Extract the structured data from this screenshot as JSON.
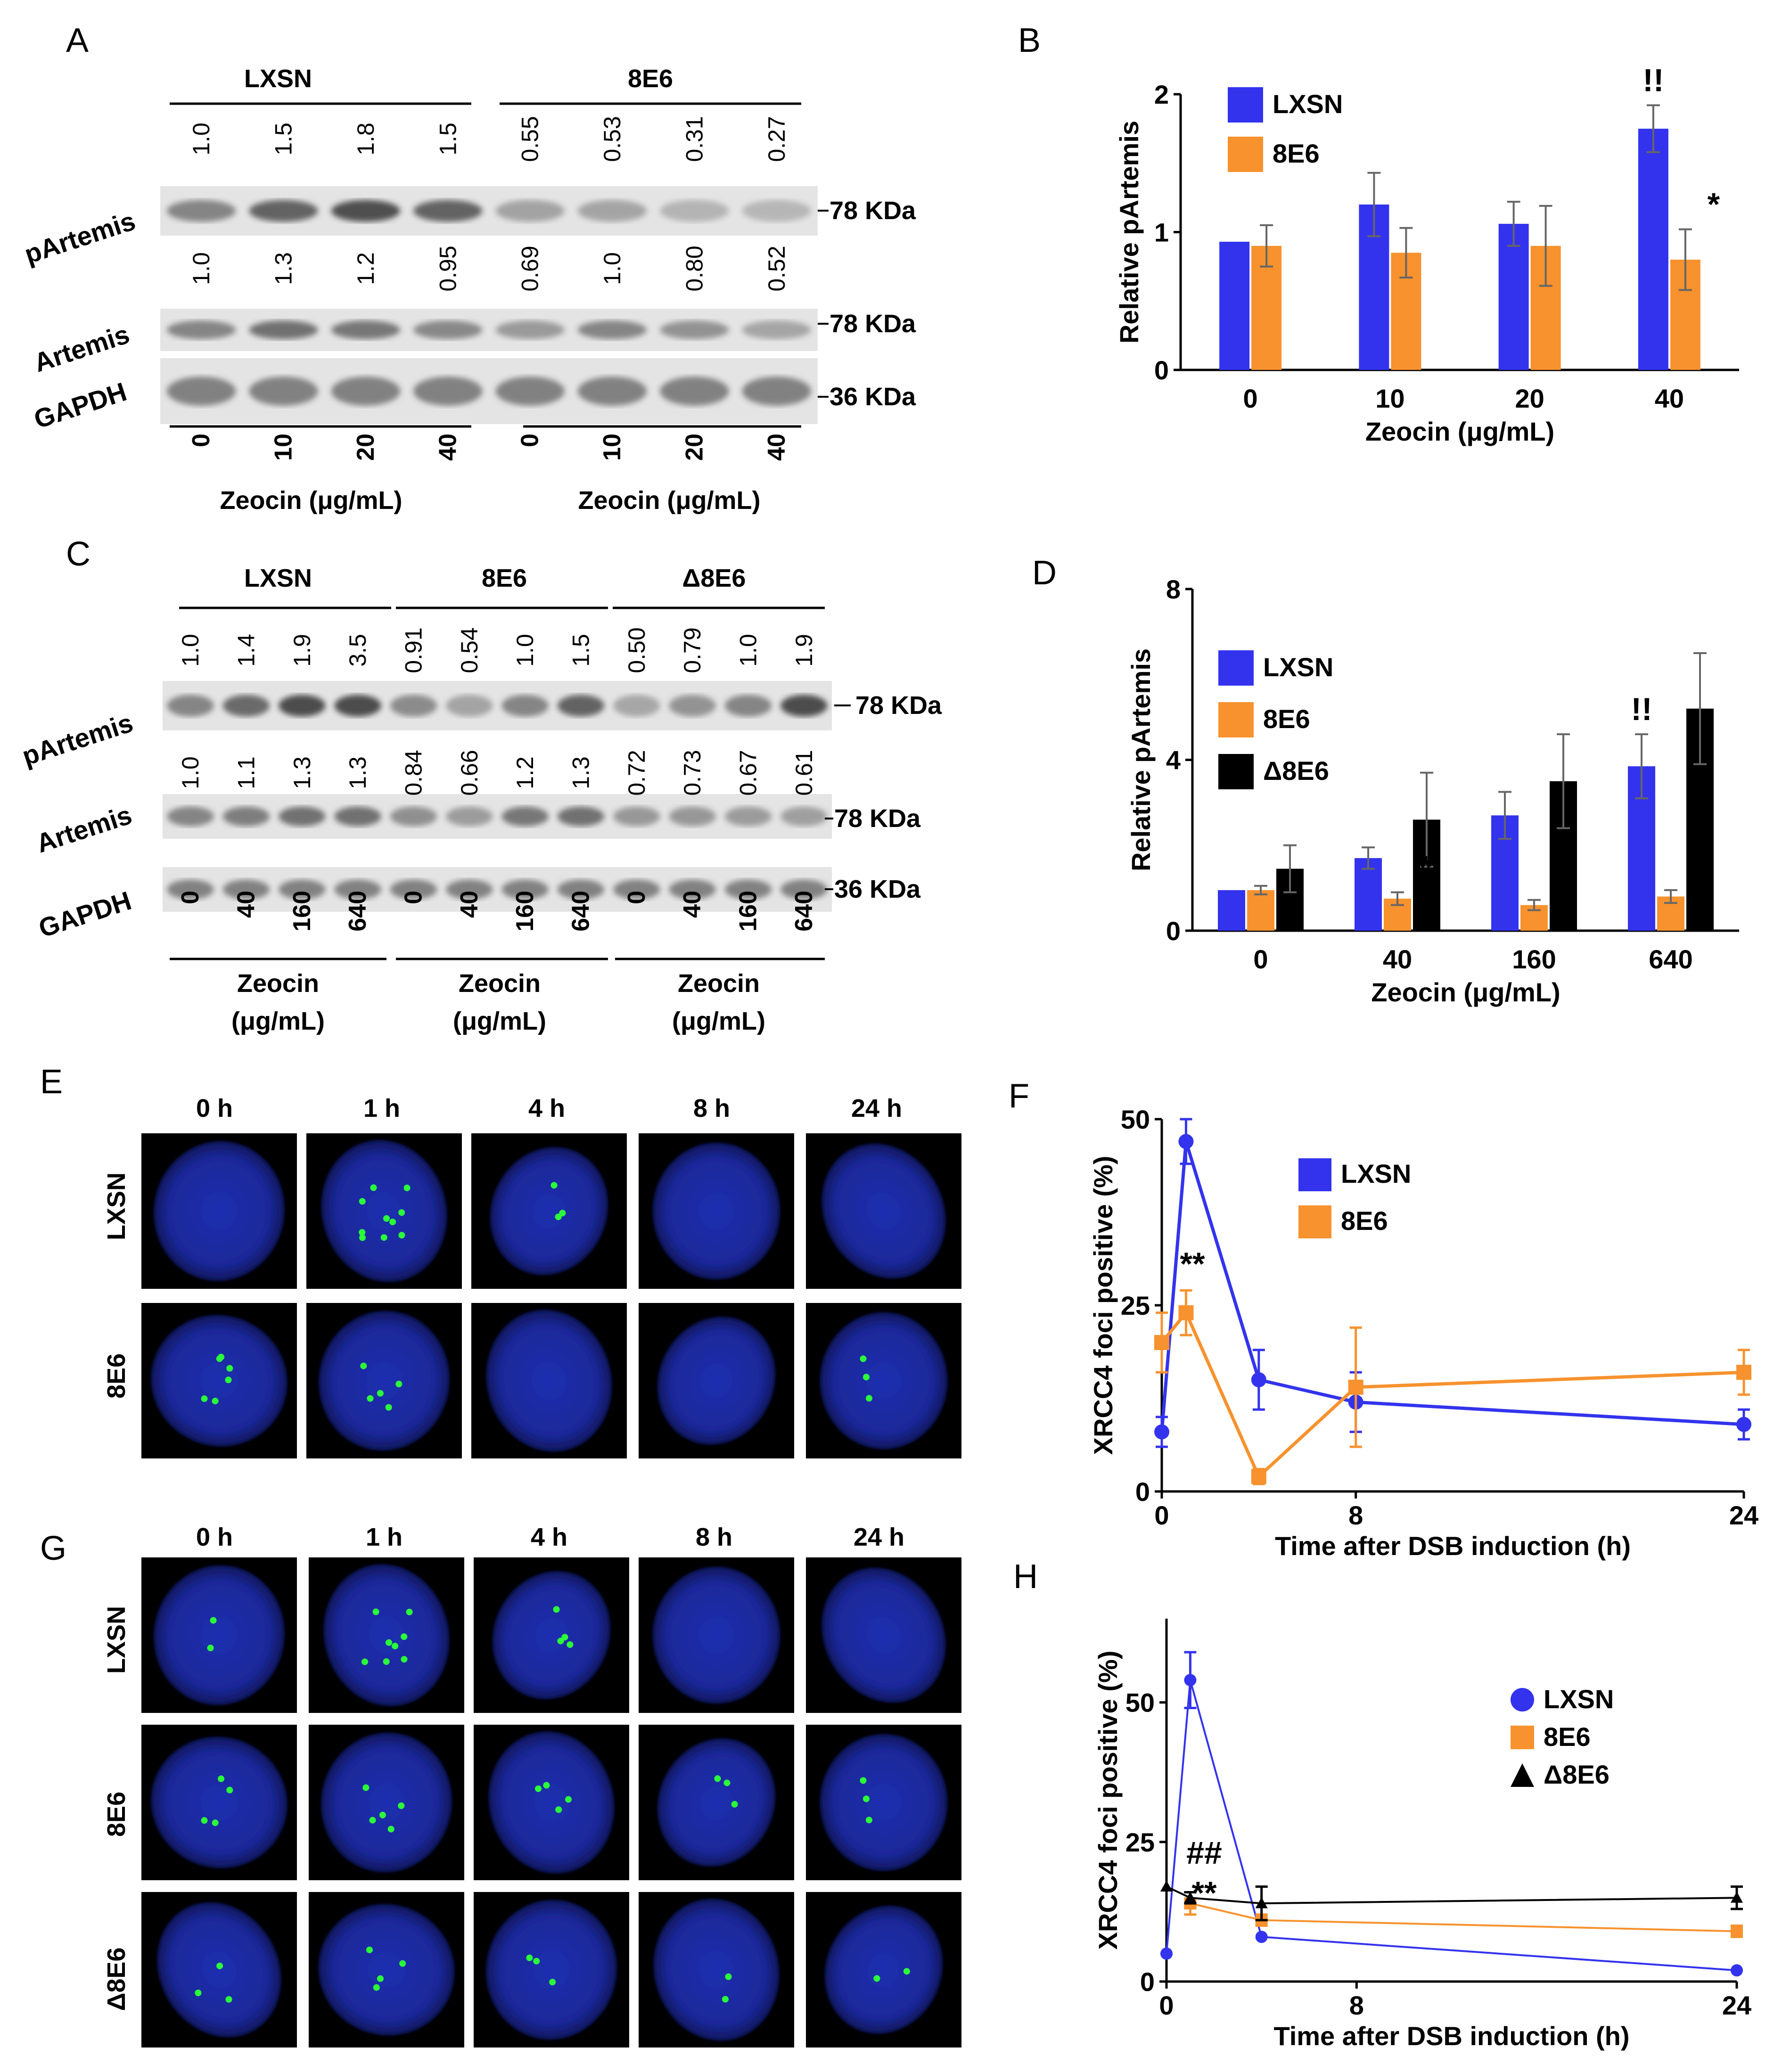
{
  "panel_labels": [
    "A",
    "B",
    "C",
    "D",
    "E",
    "F",
    "G",
    "H"
  ],
  "blot_A": {
    "groups": [
      "LXSN",
      "8E6"
    ],
    "pArtemis_quant": [
      "1.0",
      "1.5",
      "1.8",
      "1.5",
      "0.55",
      "0.53",
      "0.31",
      "0.27"
    ],
    "artemis_quant": [
      "1.0",
      "1.3",
      "1.2",
      "0.95",
      "0.69",
      "1.0",
      "0.80",
      "0.52"
    ],
    "rows": [
      "pArtemis",
      "Artemis",
      "GAPDH"
    ],
    "sizes": [
      "78 KDa",
      "78 KDa",
      "36 KDa"
    ],
    "conc": [
      "0",
      "10",
      "20",
      "40",
      "0",
      "10",
      "20",
      "40"
    ],
    "xlabel": "Zeocin (μg/mL)"
  },
  "blot_C": {
    "groups": [
      "LXSN",
      "8E6",
      "Δ8E6"
    ],
    "pArtemis_quant": [
      "1.0",
      "1.4",
      "1.9",
      "3.5",
      "0.91",
      "0.54",
      "1.0",
      "1.5",
      "0.50",
      "0.79",
      "1.0",
      "1.9"
    ],
    "artemis_quant": [
      "1.0",
      "1.1",
      "1.3",
      "1.3",
      "0.84",
      "0.66",
      "1.2",
      "1.3",
      "0.72",
      "0.73",
      "0.67",
      "0.61"
    ],
    "rows": [
      "pArtemis",
      "Artemis",
      "GAPDH"
    ],
    "sizes": [
      "78 KDa",
      "78 KDa",
      "36 KDa"
    ],
    "conc": [
      "0",
      "40",
      "160",
      "640",
      "0",
      "40",
      "160",
      "640",
      "0",
      "40",
      "160",
      "640"
    ],
    "xlabel_line1": "Zeocin",
    "xlabel_line2": "(μg/mL)"
  },
  "images_E": {
    "times": [
      "0 h",
      "1 h",
      "4 h",
      "8 h",
      "24 h"
    ],
    "rows": [
      "LXSN",
      "8E6"
    ],
    "colors": {
      "nucleus": "#1f2fb0",
      "foci": "#2bff3a"
    }
  },
  "images_G": {
    "times": [
      "0 h",
      "1 h",
      "4 h",
      "8 h",
      "24 h"
    ],
    "rows": [
      "LXSN",
      "8E6",
      "Δ8E6"
    ]
  },
  "chart_data": [
    {
      "panel": "B",
      "type": "bar",
      "categories": [
        "0",
        "10",
        "20",
        "40"
      ],
      "series": [
        {
          "name": "LXSN",
          "values": [
            0.93,
            1.2,
            1.06,
            1.75
          ],
          "errors": [
            0.0,
            0.23,
            0.16,
            0.17
          ],
          "color": "#3333ee"
        },
        {
          "name": "8E6",
          "values": [
            0.9,
            0.85,
            0.9,
            0.8
          ],
          "errors": [
            0.15,
            0.18,
            0.29,
            0.22
          ],
          "color": "#f7922e"
        }
      ],
      "annotations": [
        {
          "category": "40",
          "series": "LXSN",
          "text": "!!"
        },
        {
          "category": "40",
          "series": "8E6",
          "text": "*"
        }
      ],
      "xlabel": "Zeocin (μg/mL)",
      "ylabel": "Relative pArtemis",
      "ylim": [
        0,
        2
      ],
      "yticks": [
        "0",
        "1",
        "2"
      ]
    },
    {
      "panel": "D",
      "type": "bar",
      "categories": [
        "0",
        "40",
        "160",
        "640"
      ],
      "series": [
        {
          "name": "LXSN",
          "values": [
            0.95,
            1.7,
            2.7,
            3.85
          ],
          "errors": [
            0.0,
            0.25,
            0.55,
            0.75
          ],
          "color": "#3333ee"
        },
        {
          "name": "8E6",
          "values": [
            0.95,
            0.75,
            0.6,
            0.8
          ],
          "errors": [
            0.1,
            0.15,
            0.12,
            0.15
          ],
          "color": "#f7922e"
        },
        {
          "name": "Δ8E6",
          "values": [
            1.45,
            2.6,
            3.5,
            5.2
          ],
          "errors": [
            0.55,
            1.1,
            1.1,
            1.3
          ],
          "color": "#000000"
        }
      ],
      "annotations": [
        {
          "category": "640",
          "series": "LXSN",
          "text": "!!"
        },
        {
          "category": "40",
          "series": "8E6",
          "text": "*"
        },
        {
          "category": "160",
          "series": "8E6",
          "text": "*"
        },
        {
          "category": "640",
          "series": "8E6",
          "text": "*"
        }
      ],
      "xlabel": "Zeocin (μg/mL)",
      "ylabel": "Relative pArtemis",
      "ylim": [
        0,
        8
      ],
      "yticks": [
        "0",
        "4",
        "8"
      ]
    },
    {
      "panel": "F",
      "type": "line",
      "series": [
        {
          "name": "LXSN",
          "x": [
            0,
            1,
            4,
            8,
            24
          ],
          "y": [
            8,
            47,
            15,
            12,
            9
          ],
          "errors": [
            2,
            3,
            4,
            4,
            2
          ],
          "color": "#3333ee",
          "marker": "circle"
        },
        {
          "name": "8E6",
          "x": [
            0,
            1,
            4,
            8,
            24
          ],
          "y": [
            20,
            24,
            2,
            14,
            16
          ],
          "errors": [
            4,
            3,
            1,
            8,
            3
          ],
          "color": "#f7922e",
          "marker": "square"
        }
      ],
      "annotations": [
        {
          "x": 1,
          "text": "**"
        }
      ],
      "xlabel": "Time after DSB induction (h)",
      "ylabel": "XRCC4 foci positive (%)",
      "xlim": [
        0,
        24
      ],
      "ylim": [
        0,
        50
      ],
      "xticks": [
        "0",
        "8",
        "24"
      ],
      "yticks": [
        "0",
        "25",
        "50"
      ]
    },
    {
      "panel": "H",
      "type": "line",
      "series": [
        {
          "name": "LXSN",
          "x": [
            0,
            1,
            4,
            24
          ],
          "y": [
            5,
            54,
            8,
            2
          ],
          "errors": [
            0,
            5,
            0,
            0
          ],
          "color": "#3333ee",
          "marker": "circle"
        },
        {
          "name": "8E6",
          "x": [
            1,
            4,
            24
          ],
          "y": [
            14,
            11,
            9
          ],
          "errors": [
            2,
            1,
            1
          ],
          "color": "#f7922e",
          "marker": "square"
        },
        {
          "name": "Δ8E6",
          "x": [
            0,
            1,
            4,
            24
          ],
          "y": [
            17,
            15,
            14,
            15
          ],
          "errors": [
            0,
            1,
            3,
            2
          ],
          "color": "#000000",
          "marker": "triangle"
        }
      ],
      "annotations": [
        {
          "x": 1,
          "text": "##"
        },
        {
          "x": 1,
          "text": "**"
        }
      ],
      "xlabel": "Time after DSB induction (h)",
      "ylabel": "XRCC4 foci positive (%)",
      "xlim": [
        0,
        24
      ],
      "ylim": [
        0,
        65
      ],
      "xticks": [
        "0",
        "8",
        "24"
      ],
      "yticks": [
        "0",
        "25",
        "50"
      ]
    }
  ]
}
